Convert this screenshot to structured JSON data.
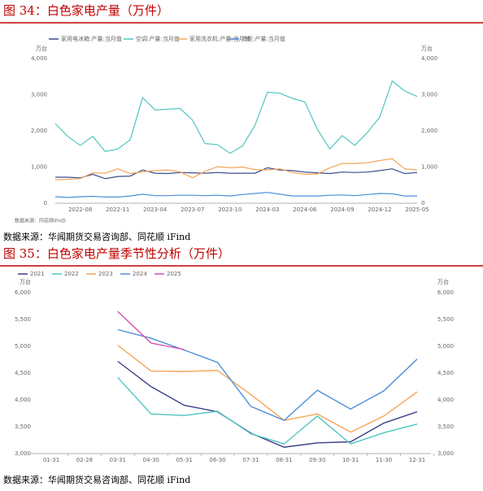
{
  "headers": [
    "图 34：白色家电产量（万件）",
    "图 35：白色家电产量季节性分析（万件）"
  ],
  "sources": [
    "数据来源：华闻期货交易咨询部、同花顺 iFind",
    "数据来源：华闻期货交易咨询部、同花顺 iFind"
  ],
  "chart_data": [
    {
      "type": "line",
      "unit": "万台",
      "note": "数据来源：同花顺iFinD",
      "categories": [
        null,
        null,
        "2022-08",
        null,
        null,
        "2022-11",
        null,
        null,
        "2023-04",
        null,
        null,
        "2023-07",
        null,
        null,
        "2023-10",
        null,
        null,
        "2024-03",
        null,
        null,
        "2024-06",
        null,
        null,
        "2024-09",
        null,
        null,
        "2024-12",
        null,
        null,
        "2025-05"
      ],
      "series": [
        {
          "name": "家用电冰箱:产量:当月值",
          "color": "#3c4b8c",
          "values": [
            720,
            720,
            700,
            800,
            680,
            740,
            750,
            920,
            830,
            820,
            850,
            840,
            830,
            850,
            830,
            830,
            830,
            980,
            920,
            900,
            860,
            840,
            820,
            860,
            850,
            860,
            900,
            950,
            820,
            850
          ]
        },
        {
          "name": "空调:产量:当月值",
          "color": "#4fc6c0",
          "values": [
            2200,
            1850,
            1600,
            1850,
            1430,
            1500,
            1750,
            2920,
            2580,
            2600,
            2620,
            2300,
            1650,
            1620,
            1380,
            1580,
            2150,
            3070,
            3040,
            2900,
            2800,
            2050,
            1500,
            1870,
            1600,
            1950,
            2380,
            3380,
            3100,
            2950
          ]
        },
        {
          "name": "家用洗衣机:产量:当月值",
          "color": "#f5a55a",
          "values": [
            650,
            660,
            680,
            840,
            830,
            950,
            820,
            870,
            900,
            920,
            870,
            700,
            880,
            1010,
            980,
            1000,
            930,
            920,
            950,
            850,
            800,
            810,
            980,
            1100,
            1100,
            1120,
            1180,
            1230,
            950,
            920
          ]
        },
        {
          "name": "冷柜:产量:当月值",
          "color": "#4a90d9",
          "values": [
            180,
            160,
            180,
            190,
            170,
            170,
            200,
            250,
            210,
            210,
            220,
            220,
            210,
            220,
            200,
            240,
            270,
            300,
            250,
            200,
            200,
            200,
            220,
            230,
            210,
            240,
            270,
            260,
            200,
            200
          ]
        }
      ],
      "ylim": [
        0,
        4000
      ],
      "yticks": [
        0,
        {
          "value": 1000,
          "label": "1,000"
        },
        {
          "value": 2000,
          "label": "2,000"
        },
        {
          "value": 3000,
          "label": "3,000"
        },
        {
          "value": 4000,
          "label": "4,000"
        }
      ],
      "y2lim": [
        0,
        4000
      ],
      "y2ticks": [
        0,
        {
          "value": 1000,
          "label": "1,000"
        },
        {
          "value": 2000,
          "label": "2,000"
        },
        {
          "value": 3000,
          "label": "3,000"
        },
        {
          "value": 4000,
          "label": "4,000"
        }
      ]
    },
    {
      "type": "line",
      "unit": "万台",
      "categories": [
        "01-31",
        "02-28",
        "03-31",
        "04-30",
        "05-31",
        "06-30",
        "07-31",
        "08-31",
        "09-30",
        "10-31",
        "11-30",
        "12-31"
      ],
      "series": [
        {
          "name": "2021",
          "color": "#3c3f8c",
          "values": [
            null,
            null,
            4720,
            4250,
            3900,
            3780,
            3380,
            3120,
            3200,
            3220,
            3570,
            3780
          ]
        },
        {
          "name": "2022",
          "color": "#4fc6c0",
          "values": [
            null,
            null,
            4420,
            3740,
            3710,
            3790,
            3370,
            3180,
            3700,
            3180,
            3390,
            3550
          ]
        },
        {
          "name": "2023",
          "color": "#f5a55a",
          "values": [
            null,
            null,
            5020,
            4540,
            4530,
            4550,
            4100,
            3620,
            3740,
            3400,
            3700,
            4150
          ]
        },
        {
          "name": "2024",
          "color": "#4a90d9",
          "values": [
            null,
            null,
            5310,
            5150,
            4930,
            4700,
            3880,
            3620,
            4180,
            3830,
            4170,
            4760
          ]
        },
        {
          "name": "2025",
          "color": "#d94ab0",
          "values": [
            null,
            null,
            5650,
            5060,
            4940,
            null,
            null,
            null,
            null,
            null,
            null,
            null
          ]
        }
      ],
      "ylim": [
        3000,
        6000
      ],
      "yticks": [
        {
          "value": 3000,
          "label": "3,000"
        },
        {
          "value": 3500,
          "label": "3,500"
        },
        {
          "value": 4000,
          "label": "4,000"
        },
        {
          "value": 4500,
          "label": "4,500"
        },
        {
          "value": 5000,
          "label": "5,000"
        },
        {
          "value": 5500,
          "label": "5,500"
        },
        {
          "value": 6000,
          "label": "6,000"
        }
      ],
      "y2lim": [
        3000,
        6000
      ],
      "y2ticks": [
        {
          "value": 3000,
          "label": "3,000"
        },
        {
          "value": 3500,
          "label": "3,500"
        },
        {
          "value": 4000,
          "label": "4,000"
        },
        {
          "value": 4500,
          "label": "4,500"
        },
        {
          "value": 5000,
          "label": "5,000"
        },
        {
          "value": 5500,
          "label": "5,500"
        },
        {
          "value": 6000,
          "label": "6,000"
        }
      ]
    }
  ]
}
